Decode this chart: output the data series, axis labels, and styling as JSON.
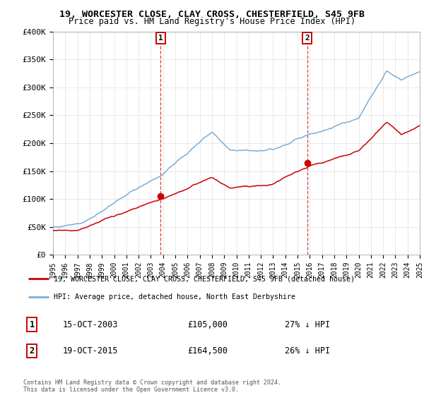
{
  "title1": "19, WORCESTER CLOSE, CLAY CROSS, CHESTERFIELD, S45 9FB",
  "title2": "Price paid vs. HM Land Registry's House Price Index (HPI)",
  "legend_line1": "19, WORCESTER CLOSE, CLAY CROSS, CHESTERFIELD, S45 9FB (detached house)",
  "legend_line2": "HPI: Average price, detached house, North East Derbyshire",
  "sale1_label": "1",
  "sale1_date": "15-OCT-2003",
  "sale1_price": "£105,000",
  "sale1_hpi": "27% ↓ HPI",
  "sale2_label": "2",
  "sale2_date": "19-OCT-2015",
  "sale2_price": "£164,500",
  "sale2_hpi": "26% ↓ HPI",
  "copyright": "Contains HM Land Registry data © Crown copyright and database right 2024.\nThis data is licensed under the Open Government Licence v3.0.",
  "red_color": "#cc0000",
  "blue_color": "#7aaed6",
  "ylim": [
    0,
    400000
  ],
  "yticks": [
    0,
    50000,
    100000,
    150000,
    200000,
    250000,
    300000,
    350000,
    400000
  ],
  "ytick_labels": [
    "£0",
    "£50K",
    "£100K",
    "£150K",
    "£200K",
    "£250K",
    "£300K",
    "£350K",
    "£400K"
  ],
  "sale1_x": 2003.79,
  "sale1_y": 105000,
  "sale2_x": 2015.79,
  "sale2_y": 164500,
  "xlim_start": 1995,
  "xlim_end": 2025
}
